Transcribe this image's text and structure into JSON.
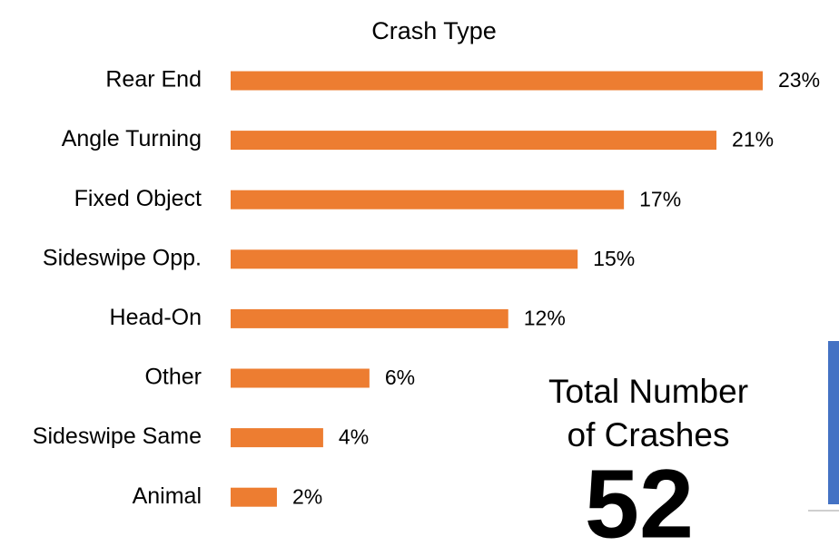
{
  "chart_data": {
    "type": "bar",
    "orientation": "horizontal",
    "title": "Crash Type",
    "categories": [
      "Rear End",
      "Angle Turning",
      "Fixed Object",
      "Sideswipe Opp.",
      "Head-On",
      "Other",
      "Sideswipe Same",
      "Animal"
    ],
    "values": [
      23,
      21,
      17,
      15,
      12,
      6,
      4,
      2
    ],
    "value_labels": [
      "23%",
      "21%",
      "17%",
      "15%",
      "12%",
      "6%",
      "4%",
      "2%"
    ],
    "color": "#ed7d31",
    "annotations": [
      "Total Number",
      "of Crashes"
    ],
    "total": 52
  }
}
